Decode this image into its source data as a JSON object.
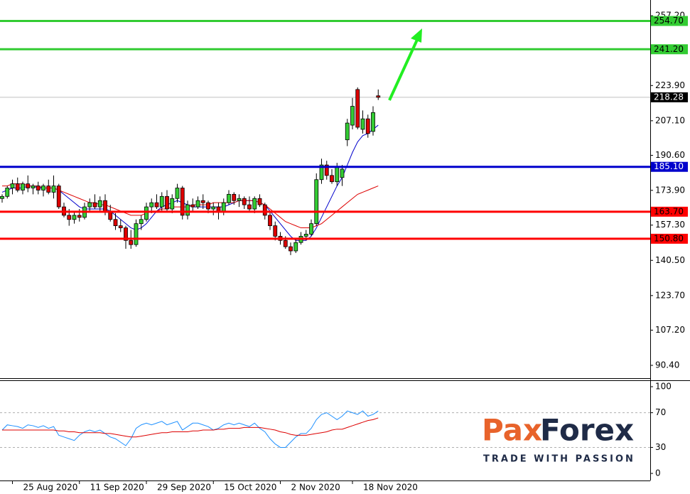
{
  "chart_data": [
    {
      "type": "candlestick",
      "up_color": "#33cc33",
      "down_color": "#dd0000",
      "open": [
        170,
        171,
        175,
        177,
        174,
        177,
        175,
        176,
        174,
        176,
        173,
        176,
        166,
        162,
        160,
        162,
        161,
        166,
        168,
        166,
        169,
        164,
        160,
        157,
        156,
        150,
        148,
        158,
        160,
        166,
        168,
        166,
        171,
        165,
        170,
        175,
        162,
        167,
        166,
        169,
        168,
        165,
        166,
        164,
        168,
        172,
        169,
        170,
        167,
        165,
        170,
        167,
        162,
        157,
        152,
        150,
        147,
        145,
        149,
        152,
        153,
        158,
        179,
        186,
        181,
        178,
        180,
        198,
        205,
        222,
        203,
        208,
        202,
        219
      ],
      "high": [
        172,
        176,
        179,
        180,
        178,
        181,
        177,
        178,
        177,
        179,
        181,
        177,
        168,
        165,
        164,
        165,
        168,
        170,
        172,
        171,
        172,
        167,
        163,
        160,
        157,
        155,
        160,
        162,
        168,
        170,
        172,
        173,
        174,
        172,
        177,
        176,
        169,
        170,
        171,
        172,
        169,
        168,
        168,
        170,
        174,
        173,
        172,
        171,
        171,
        171,
        172,
        168,
        164,
        159,
        154,
        152,
        149,
        151,
        154,
        155,
        160,
        182,
        189,
        188,
        184,
        187,
        186,
        208,
        218,
        223,
        212,
        210,
        214,
        222
      ],
      "low": [
        168,
        170,
        172,
        173,
        172,
        173,
        172,
        172,
        171,
        172,
        170,
        165,
        161,
        157,
        158,
        159,
        160,
        164,
        165,
        164,
        162,
        159,
        155,
        154,
        146,
        146,
        147,
        155,
        159,
        163,
        165,
        164,
        164,
        163,
        168,
        160,
        160,
        164,
        165,
        165,
        163,
        162,
        160,
        162,
        167,
        167,
        166,
        165,
        164,
        163,
        166,
        160,
        155,
        150,
        148,
        146,
        143,
        144,
        148,
        150,
        152,
        157,
        177,
        179,
        177,
        176,
        176,
        195,
        203,
        203,
        201,
        199,
        200,
        217
      ],
      "close": [
        171,
        175,
        177,
        174,
        177,
        175,
        176,
        174,
        176,
        173,
        176,
        166,
        162,
        160,
        162,
        161,
        166,
        168,
        166,
        169,
        164,
        160,
        157,
        156,
        150,
        148,
        158,
        160,
        166,
        168,
        166,
        171,
        165,
        170,
        175,
        162,
        167,
        166,
        169,
        168,
        165,
        166,
        164,
        168,
        172,
        169,
        170,
        167,
        165,
        170,
        167,
        162,
        157,
        152,
        150,
        147,
        145,
        149,
        152,
        153,
        158,
        179,
        186,
        181,
        178,
        185,
        184,
        206,
        214,
        204,
        208,
        201,
        211,
        218.28
      ],
      "series": [
        {
          "color": "#0000cc",
          "values": [
            173,
            174,
            175,
            175,
            175,
            176,
            176,
            175,
            175,
            175,
            175,
            174,
            172,
            170,
            168,
            166,
            165,
            165,
            165,
            165,
            165,
            164,
            162,
            160,
            158,
            156,
            155,
            156,
            158,
            161,
            164,
            166,
            167,
            168,
            169,
            168,
            167,
            166,
            166,
            166,
            166,
            166,
            166,
            166,
            167,
            168,
            169,
            169,
            169,
            169,
            168,
            167,
            164,
            161,
            158,
            155,
            152,
            150,
            150,
            150,
            152,
            156,
            161,
            166,
            171,
            176,
            180,
            186,
            192,
            197,
            200,
            201,
            203,
            205
          ]
        },
        {
          "color": "#dd0000",
          "values": [
            176,
            176,
            177,
            177,
            177,
            176,
            176,
            176,
            175,
            175,
            175,
            174,
            173,
            172,
            171,
            170,
            169,
            168,
            168,
            167,
            167,
            166,
            165,
            164,
            163,
            162,
            162,
            162,
            163,
            164,
            164,
            165,
            165,
            166,
            166,
            166,
            166,
            167,
            167,
            167,
            167,
            168,
            168,
            168,
            168,
            168,
            169,
            169,
            169,
            169,
            168,
            167,
            165,
            163,
            161,
            159,
            158,
            157,
            156,
            156,
            156,
            157,
            158,
            160,
            162,
            164,
            166,
            168,
            170,
            172,
            173,
            174,
            175,
            176
          ]
        }
      ],
      "ylim": [
        84.3,
        264.7
      ],
      "yticks": [
        {
          "value": 257.2,
          "label": "257.20"
        },
        {
          "value": 223.9,
          "label": "223.90"
        },
        {
          "value": 207.1,
          "label": "207.10"
        },
        {
          "value": 190.6,
          "label": "190.60"
        },
        {
          "value": 173.9,
          "label": "173.90"
        },
        {
          "value": 157.3,
          "label": "157.30"
        },
        {
          "value": 140.5,
          "label": "140.50"
        },
        {
          "value": 123.7,
          "label": "123.70"
        },
        {
          "value": 107.2,
          "label": "107.20"
        },
        {
          "value": 90.4,
          "label": "90.40"
        }
      ],
      "levels": [
        {
          "value": 254.7,
          "label": "254.70",
          "color": "#33cc33"
        },
        {
          "value": 241.2,
          "label": "241.20",
          "color": "#33cc33"
        },
        {
          "value": 185.1,
          "label": "185.10",
          "color": "#0000cc"
        },
        {
          "value": 163.7,
          "label": "163.70",
          "color": "#ff0000"
        },
        {
          "value": 150.8,
          "label": "150.80",
          "color": "#ff0000"
        }
      ],
      "last": {
        "value": 218.28,
        "label": "218.28"
      }
    },
    {
      "type": "line",
      "categories": [
        null,
        null,
        "25 Aug 2020",
        null,
        null,
        null,
        null,
        null,
        null,
        null,
        null,
        null,
        null,
        null,
        null,
        "11 Sep 2020",
        null,
        null,
        null,
        null,
        null,
        null,
        null,
        null,
        null,
        null,
        null,
        null,
        "29 Sep 2020",
        null,
        null,
        null,
        null,
        null,
        null,
        null,
        null,
        null,
        null,
        null,
        null,
        "15 Oct 2020",
        null,
        null,
        null,
        null,
        null,
        null,
        null,
        null,
        null,
        null,
        null,
        null,
        "2 Nov 2020",
        null,
        null,
        null,
        null,
        null,
        null,
        null,
        null,
        null,
        null,
        null,
        null,
        null,
        "18 Nov 2020",
        null,
        null,
        null,
        null,
        null
      ],
      "series": [
        {
          "color": "#1e90ff",
          "values": [
            50,
            56,
            55,
            54,
            52,
            56,
            55,
            53,
            55,
            52,
            54,
            44,
            42,
            40,
            38,
            44,
            48,
            50,
            48,
            50,
            46,
            42,
            40,
            36,
            32,
            40,
            52,
            56,
            58,
            56,
            58,
            60,
            56,
            58,
            60,
            50,
            54,
            58,
            58,
            56,
            54,
            50,
            52,
            56,
            58,
            56,
            58,
            56,
            54,
            58,
            52,
            48,
            40,
            34,
            30,
            30,
            36,
            42,
            46,
            46,
            52,
            62,
            68,
            70,
            66,
            62,
            66,
            72,
            70,
            68,
            72,
            66,
            68,
            72
          ]
        },
        {
          "color": "#dd0000",
          "values": [
            50,
            50,
            50,
            50,
            50,
            50,
            50,
            50,
            50,
            50,
            50,
            49,
            49,
            48,
            48,
            47,
            47,
            47,
            47,
            47,
            46,
            46,
            45,
            44,
            43,
            42,
            42,
            43,
            44,
            45,
            46,
            47,
            47,
            48,
            48,
            48,
            48,
            49,
            49,
            50,
            50,
            50,
            51,
            51,
            52,
            52,
            52,
            53,
            53,
            53,
            53,
            52,
            51,
            50,
            48,
            47,
            45,
            44,
            44,
            44,
            45,
            46,
            47,
            48,
            50,
            51,
            51,
            53,
            55,
            57,
            59,
            61,
            62,
            64
          ]
        }
      ],
      "ylim": [
        -9.8,
        107.4
      ],
      "yticks": [
        100,
        70,
        30,
        0
      ],
      "dashed_levels": [
        70,
        30
      ]
    }
  ],
  "watermark": {
    "left": "Pax",
    "right": "Forex",
    "tagline": "TRADE WITH PASSION"
  }
}
